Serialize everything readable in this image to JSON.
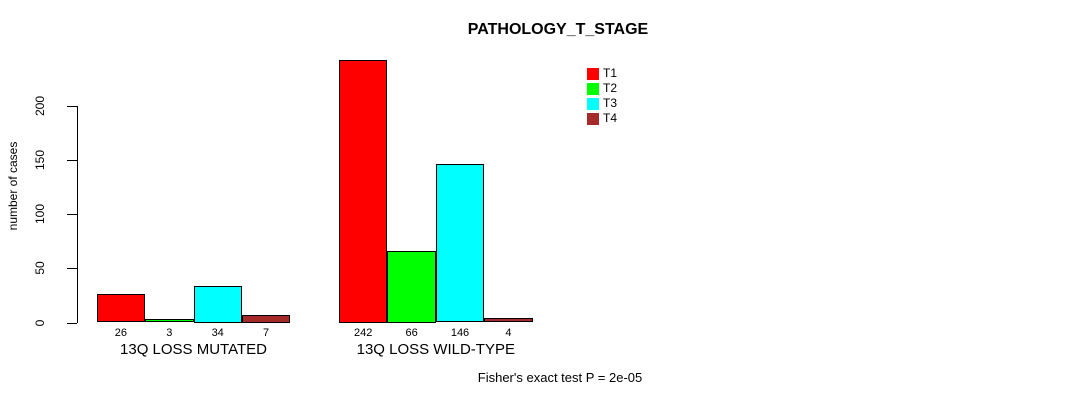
{
  "chart_data": {
    "type": "bar",
    "title": "PATHOLOGY_T_STAGE",
    "ylabel": "number of cases",
    "xlabel": "",
    "yticks": [
      0,
      50,
      100,
      150,
      200
    ],
    "ylim": [
      0,
      254
    ],
    "grid": false,
    "legend_position": "top-right",
    "series": [
      {
        "name": "T1",
        "color": "#FF0000"
      },
      {
        "name": "T2",
        "color": "#00FF00"
      },
      {
        "name": "T3",
        "color": "#00FFFF"
      },
      {
        "name": "T4",
        "color": "#A52A2A"
      }
    ],
    "groups": [
      {
        "label": "13Q LOSS MUTATED",
        "values": [
          26,
          3,
          34,
          7
        ]
      },
      {
        "label": "13Q LOSS WILD-TYPE",
        "values": [
          242,
          66,
          146,
          4
        ]
      }
    ],
    "note": "Fisher's exact test P = 2e-05"
  }
}
